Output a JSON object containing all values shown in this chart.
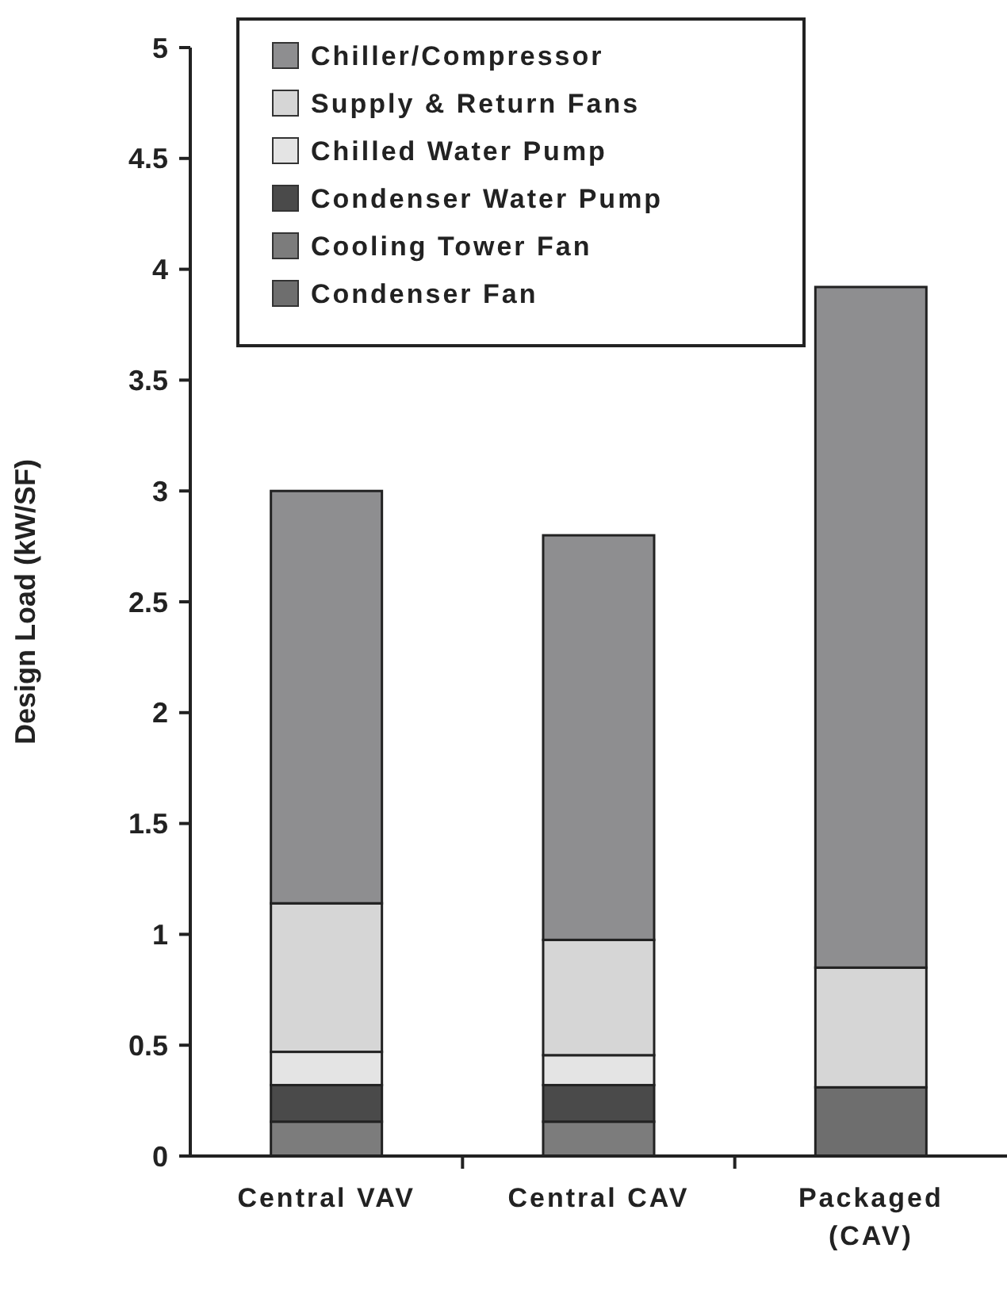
{
  "chart_data": {
    "type": "bar",
    "stacked": true,
    "ylabel": "Design Load (kW/SF)",
    "categories": [
      "Central VAV",
      "Central CAV",
      "Packaged (CAV)"
    ],
    "series": [
      {
        "name": "Condenser Fan",
        "color": "#6e6e6e",
        "values": [
          null,
          null,
          0.31
        ]
      },
      {
        "name": "Cooling Tower Fan",
        "color": "#7c7c7c",
        "values": [
          0.155,
          0.155,
          null
        ]
      },
      {
        "name": "Condenser Water Pump",
        "color": "#4a4a4a",
        "values": [
          0.165,
          0.165,
          null
        ]
      },
      {
        "name": "Chilled Water Pump",
        "color": "#e4e4e4",
        "values": [
          0.15,
          0.135,
          null
        ]
      },
      {
        "name": "Supply & Return Fans",
        "color": "#d6d6d6",
        "values": [
          0.67,
          0.52,
          0.54
        ]
      },
      {
        "name": "Chiller/Compressor",
        "color": "#8e8e90",
        "values": [
          1.86,
          1.825,
          3.07
        ]
      }
    ],
    "ylim": [
      0,
      5
    ],
    "yticks": [
      0,
      0.5,
      1,
      1.5,
      2,
      2.5,
      3,
      3.5,
      4,
      4.5,
      5
    ],
    "grid": false,
    "legend": "top left"
  }
}
